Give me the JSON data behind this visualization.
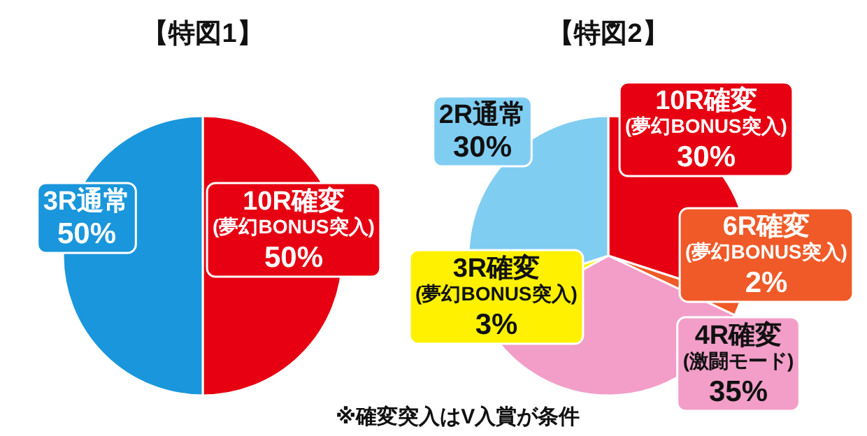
{
  "chart_data": [
    {
      "type": "pie",
      "title": "【特図1】",
      "categories": [
        "10R確変\n(夢幻BONUS突入)",
        "3R通常"
      ],
      "values": [
        50,
        50
      ],
      "colors": [
        "#e60012",
        "#1a96dc"
      ],
      "value_labels": [
        "50%",
        "50%"
      ]
    },
    {
      "type": "pie",
      "title": "【特図2】",
      "categories": [
        "10R確変\n(夢幻BONUS突入)",
        "6R確変\n(夢幻BONUS突入)",
        "4R確変\n(激闘モード)",
        "3R確変\n(夢幻BONUS突入)",
        "2R通常"
      ],
      "values": [
        30,
        2,
        35,
        3,
        30
      ],
      "colors": [
        "#e60012",
        "#f05a28",
        "#f29ec8",
        "#fff100",
        "#80cdf2"
      ],
      "value_labels": [
        "30%",
        "2%",
        "35%",
        "3%",
        "30%"
      ],
      "annotations": [
        "※確変突入はV入賞が条件"
      ]
    }
  ]
}
